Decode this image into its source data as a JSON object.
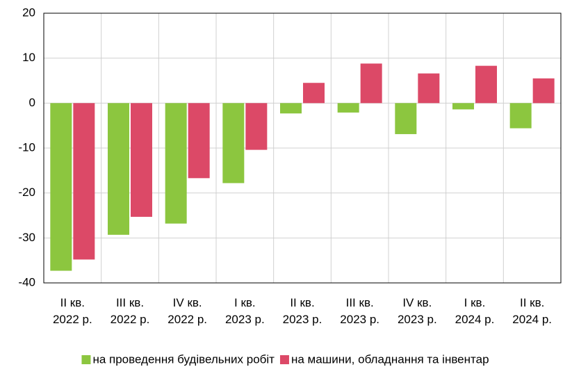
{
  "chart_data": {
    "type": "bar",
    "categories": [
      "II кв.\n2022 р.",
      "III кв.\n2022 р.",
      "IV кв.\n2022 р.",
      "I кв.\n2023 р.",
      "II кв.\n2023 р.",
      "III кв.\n2023 р.",
      "IV кв.\n2023 р.",
      "I кв.\n2024 р.",
      "II кв.\n2024 р."
    ],
    "series": [
      {
        "name": "на проведення будівельних робіт",
        "color": "#8cc63f",
        "values": [
          -37.3,
          -29.3,
          -26.8,
          -17.8,
          -2.3,
          -2.1,
          -6.9,
          -1.4,
          -5.6
        ]
      },
      {
        "name": "на машини, обладнання та інвентар",
        "color": "#dc4967",
        "values": [
          -34.8,
          -25.3,
          -16.7,
          -10.4,
          4.5,
          8.8,
          6.6,
          8.3,
          5.5
        ]
      }
    ],
    "ylim": [
      -40,
      20
    ],
    "yticks": [
      -40,
      -30,
      -20,
      -10,
      0,
      10,
      20
    ],
    "grid": true,
    "legend": "bottom"
  }
}
